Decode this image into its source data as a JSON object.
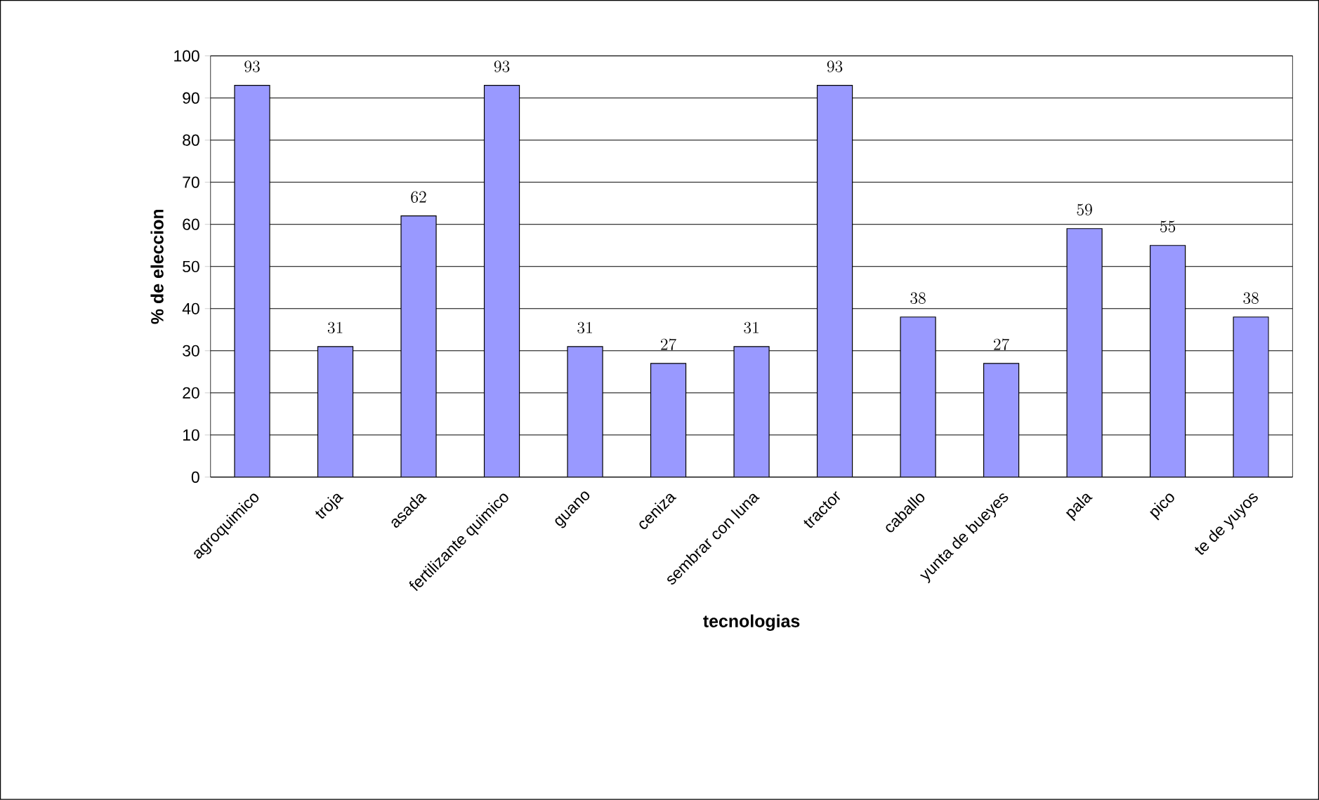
{
  "chart_data": {
    "type": "bar",
    "xlabel": "tecnologias",
    "ylabel": "% de eleccion",
    "categories": [
      "agroquimico",
      "troja",
      "asada",
      "fertilizante quimico",
      "guano",
      "ceniza",
      "sembrar con luna",
      "tractor",
      "caballo",
      "yunta de bueyes",
      "pala",
      "pico",
      "te de yuyos"
    ],
    "values": [
      93,
      31,
      62,
      93,
      31,
      27,
      31,
      93,
      38,
      27,
      59,
      55,
      38
    ],
    "color": "#9999ff",
    "ylim": [
      0,
      100
    ],
    "yticks": [
      0,
      10,
      20,
      30,
      40,
      50,
      60,
      70,
      80,
      90,
      100
    ],
    "grid": "y",
    "data_labels": true
  }
}
